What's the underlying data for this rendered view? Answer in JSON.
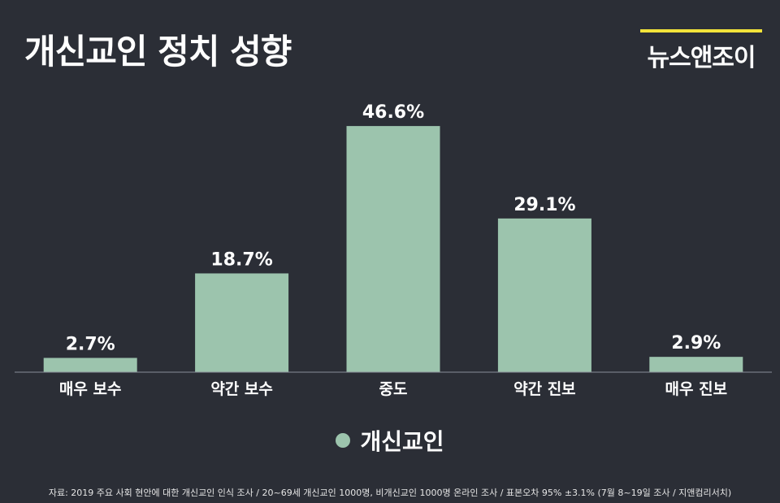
{
  "header": {
    "title": "개신교인 정치 성향",
    "logo": "뉴스앤조이",
    "logo_accent_color": "#f2e33a"
  },
  "colors": {
    "background": "#2b2e36",
    "bar": "#9cc4ad",
    "axis": "#8a8f99",
    "text": "#ffffff"
  },
  "chart_data": {
    "type": "bar",
    "categories": [
      "매우 보수",
      "약간 보수",
      "중도",
      "약간 진보",
      "매우 진보"
    ],
    "series": [
      {
        "name": "개신교인",
        "values": [
          2.7,
          18.7,
          46.6,
          29.1,
          2.9
        ]
      }
    ],
    "data_labels": [
      "2.7%",
      "18.7%",
      "46.6%",
      "29.1%",
      "2.9%"
    ],
    "ylim": [
      0,
      50
    ],
    "grid": false,
    "legend": "bottom-center"
  },
  "legend": {
    "label": "개신교인"
  },
  "footer": {
    "source": "자료: 2019 주요 사회 현안에 대한 개신교인 인식 조사  / 20~69세 개신교인 1000명, 비개신교인 1000명 온라인 조사  / 표본오차 95% ±3.1% (7월 8~19일 조사 / 지앤컴리서치)"
  }
}
